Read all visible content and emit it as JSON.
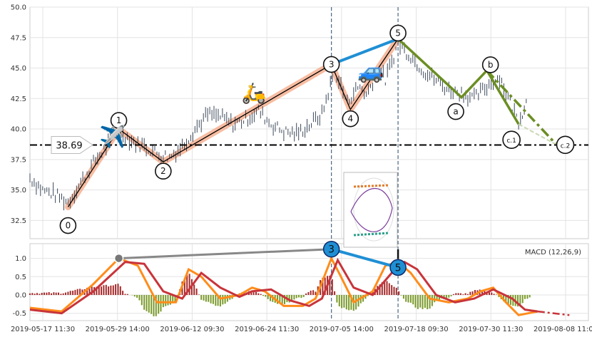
{
  "chart_data": [
    {
      "type": "candlestick",
      "title": "",
      "xlabel": "",
      "ylabel": "",
      "ylim": [
        31.0,
        50.0
      ],
      "y_ticks": [
        "32.5",
        "35.0",
        "37.5",
        "40.0",
        "42.5",
        "45.0",
        "47.5",
        "50.0"
      ],
      "x_tick_labels": [
        "2019-05-17 11:30",
        "2019-05-29 14:00",
        "2019-06-12 09:30",
        "2019-06-24 11:30",
        "2019-07-05 14:00",
        "2019-07-18 09:30",
        "2019-07-30 11:30",
        "2019-08-08 11:00"
      ],
      "grid": true,
      "price_series_approx": [
        [
          0,
          36.0
        ],
        [
          4,
          35.0
        ],
        [
          8,
          34.6
        ],
        [
          12,
          34.0
        ],
        [
          16,
          35.6
        ],
        [
          20,
          37.2
        ],
        [
          24,
          38.5
        ],
        [
          28,
          40.0
        ],
        [
          32,
          39.0
        ],
        [
          36,
          38.6
        ],
        [
          40,
          38.0
        ],
        [
          44,
          37.7
        ],
        [
          48,
          38.6
        ],
        [
          52,
          40.0
        ],
        [
          56,
          41.2
        ],
        [
          60,
          41.0
        ],
        [
          64,
          40.4
        ],
        [
          68,
          40.8
        ],
        [
          72,
          41.5
        ],
        [
          76,
          40.4
        ],
        [
          80,
          39.8
        ],
        [
          84,
          39.6
        ],
        [
          88,
          40.3
        ],
        [
          92,
          41.2
        ],
        [
          96,
          44.8
        ],
        [
          98,
          43.5
        ],
        [
          100,
          42.2
        ],
        [
          102,
          43.0
        ],
        [
          104,
          43.5
        ],
        [
          106,
          42.8
        ],
        [
          110,
          45.0
        ],
        [
          112,
          44.0
        ],
        [
          116,
          47.0
        ],
        [
          120,
          46.0
        ],
        [
          124,
          44.8
        ],
        [
          128,
          44.0
        ],
        [
          132,
          43.2
        ],
        [
          136,
          43.0
        ],
        [
          140,
          42.5
        ],
        [
          144,
          43.5
        ],
        [
          148,
          44.3
        ],
        [
          150,
          43.0
        ],
        [
          152,
          41.8
        ],
        [
          154,
          40.6
        ],
        [
          157,
          42.6
        ]
      ],
      "elliott_waves": {
        "impulse": [
          {
            "label": "0",
            "x": 12,
            "y": 33.6
          },
          {
            "label": "1",
            "x": 28,
            "y": 40.0
          },
          {
            "label": "2",
            "x": 42,
            "y": 37.3
          },
          {
            "label": "3",
            "x": 95,
            "y": 45.3
          },
          {
            "label": "4",
            "x": 101,
            "y": 41.6
          },
          {
            "label": "5",
            "x": 116,
            "y": 47.4
          }
        ],
        "correction": [
          {
            "label": "5",
            "x": 116,
            "y": 47.4
          },
          {
            "label": "a",
            "x": 136,
            "y": 42.6
          },
          {
            "label": "b",
            "x": 144,
            "y": 44.8
          },
          {
            "label": "c.1",
            "x": 154,
            "y": 40.4
          },
          {
            "label": "c.2",
            "x": 166,
            "y": 38.7
          }
        ],
        "projection_path": [
          [
            144,
            44.8
          ],
          [
            166,
            38.7
          ]
        ]
      },
      "support_level": {
        "value": 38.69,
        "label": "38.69"
      },
      "vertical_markers_x": [
        95,
        116
      ],
      "icons": [
        "airplane-emoji",
        "scooter-emoji",
        "car-emoji"
      ],
      "colors": {
        "price": "#3d4a5c",
        "impulse_band": "#f4a582",
        "impulse_line": "#000000",
        "correction": "#6b8e23",
        "wave3_to_5": "#1f8fd4",
        "marker_line": "#4a6680",
        "support": "#000000"
      }
    },
    {
      "type": "macd",
      "legend": "MACD (12,26,9)",
      "ylim": [
        -0.7,
        1.4
      ],
      "y_ticks": [
        "-0.5",
        "0.0",
        "0.5",
        "1.0"
      ],
      "macd_line_approx": [
        [
          0,
          -0.35
        ],
        [
          10,
          -0.45
        ],
        [
          20,
          0.3
        ],
        [
          28,
          1.0
        ],
        [
          34,
          0.8
        ],
        [
          40,
          -0.2
        ],
        [
          46,
          -0.2
        ],
        [
          50,
          0.7
        ],
        [
          54,
          0.5
        ],
        [
          60,
          -0.1
        ],
        [
          66,
          0.0
        ],
        [
          70,
          0.2
        ],
        [
          74,
          0.1
        ],
        [
          80,
          -0.3
        ],
        [
          86,
          -0.3
        ],
        [
          90,
          -0.1
        ],
        [
          95,
          1.0
        ],
        [
          98,
          0.5
        ],
        [
          102,
          -0.2
        ],
        [
          108,
          0.1
        ],
        [
          112,
          0.8
        ],
        [
          116,
          0.9
        ],
        [
          120,
          0.6
        ],
        [
          126,
          -0.1
        ],
        [
          132,
          -0.2
        ],
        [
          138,
          -0.1
        ],
        [
          142,
          0.1
        ],
        [
          146,
          0.2
        ],
        [
          150,
          -0.2
        ],
        [
          154,
          -0.55
        ],
        [
          160,
          -0.45
        ]
      ],
      "signal_line_approx": [
        [
          0,
          -0.4
        ],
        [
          10,
          -0.5
        ],
        [
          20,
          0.1
        ],
        [
          30,
          0.9
        ],
        [
          36,
          0.85
        ],
        [
          42,
          0.1
        ],
        [
          48,
          -0.1
        ],
        [
          54,
          0.6
        ],
        [
          60,
          0.2
        ],
        [
          66,
          -0.05
        ],
        [
          70,
          0.1
        ],
        [
          76,
          0.15
        ],
        [
          82,
          -0.15
        ],
        [
          88,
          -0.3
        ],
        [
          92,
          -0.1
        ],
        [
          97,
          0.95
        ],
        [
          102,
          0.2
        ],
        [
          108,
          0.0
        ],
        [
          114,
          0.6
        ],
        [
          118,
          0.9
        ],
        [
          122,
          0.7
        ],
        [
          128,
          0.0
        ],
        [
          134,
          -0.2
        ],
        [
          140,
          -0.1
        ],
        [
          146,
          0.15
        ],
        [
          152,
          -0.1
        ],
        [
          156,
          -0.4
        ],
        [
          160,
          -0.45
        ]
      ],
      "projection_tail": [
        [
          160,
          -0.45
        ],
        [
          170,
          -0.55
        ]
      ],
      "wave_markers": [
        {
          "label": "3",
          "x": 95,
          "y": 1.25
        },
        {
          "label": "5",
          "x": 116,
          "y": 0.75
        }
      ],
      "divergence_line": {
        "from": [
          28,
          1.0
        ],
        "to": [
          95,
          1.25
        ]
      },
      "colors": {
        "macd": "#ff8c1a",
        "signal": "#c8343a",
        "hist_pos": "#a52a2a",
        "hist_neg": "#7a9a2a",
        "divergence": "#888888",
        "wave_marker": "#1f8fd4"
      }
    }
  ]
}
